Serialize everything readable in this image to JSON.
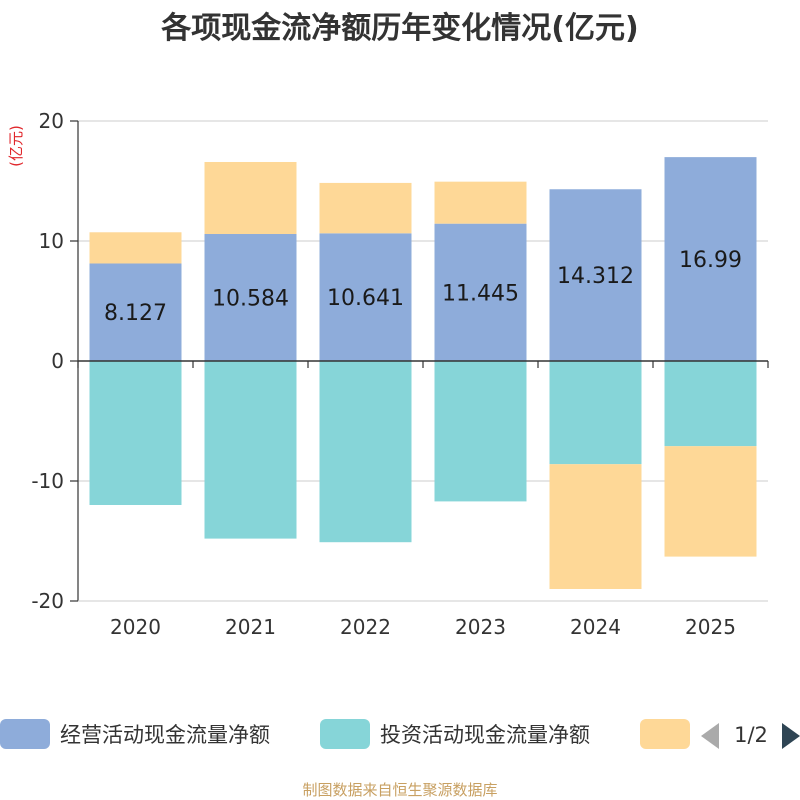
{
  "chart_data": {
    "type": "bar",
    "stacked": true,
    "title": "各项现金流净额历年变化情况(亿元)",
    "ylabel": "(亿元)",
    "xlabel": "",
    "ylim": [
      -20,
      20
    ],
    "yticks": [
      20,
      10,
      0,
      -10,
      -20
    ],
    "ytick_labels": [
      "20",
      "10",
      "0",
      "-10",
      "-20"
    ],
    "categories": [
      "2020",
      "2021",
      "2022",
      "2023",
      "2024",
      "2025"
    ],
    "series": [
      {
        "name": "经营活动现金流量净额",
        "color": "#8eacda",
        "values": [
          8.127,
          10.584,
          10.641,
          11.445,
          14.312,
          16.99
        ],
        "labels": [
          "8.127",
          "10.584",
          "10.641",
          "11.445",
          "14.312",
          "16.99"
        ]
      },
      {
        "name": "投资活动现金流量净额",
        "color": "#86d5d8",
        "values": [
          -12.0,
          -14.8,
          -15.1,
          -11.7,
          -8.6,
          -7.1
        ]
      },
      {
        "name": "",
        "color": "#fed897",
        "values": [
          2.6,
          6.0,
          4.2,
          3.5,
          -10.4,
          -9.2
        ]
      }
    ],
    "legend": {
      "position": "bottom",
      "page": "1/2"
    },
    "grid": true
  },
  "source": "制图数据来自恒生聚源数据库",
  "colors": {
    "axis": "#333333",
    "grid": "#cccccc",
    "pager_inactive": "#aaaaaa",
    "pager_active": "#2f4554"
  }
}
